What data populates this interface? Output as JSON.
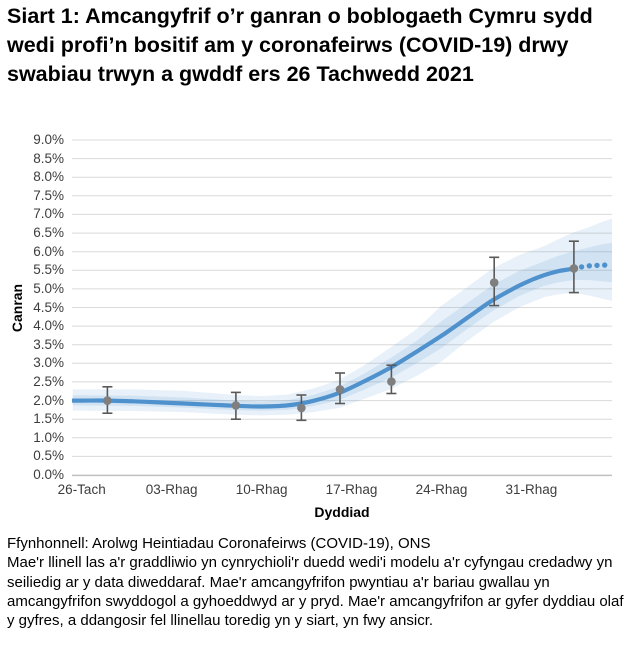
{
  "title": "Siart 1: Amcangyfrif o’r ganran o boblogaeth Cymru sydd wedi profi’n bositif am y coronafeirws (COVID-19) drwy swabiau trwyn a gwddf ers 26 Tachwedd 2021",
  "footer": {
    "source": "Ffynhonnell: Arolwg Heintiadau Coronafeirws (COVID-19), ONS",
    "note": "Mae'r llinell las a'r graddliwio yn cynrychioli'r duedd wedi'i modelu a'r cyfyngau credadwy yn seiliedig ar y data diweddaraf. Mae'r amcangyfrifon pwyntiau a'r bariau gwallau yn amcangyfrifon swyddogol a gyhoeddwyd ar y pryd. Mae'r amcangyfrifon ar gyfer dyddiau olaf y gyfres, a ddangosir fel llinellau toredig yn y siart, yn fwy ansicr."
  },
  "colors": {
    "trend": "#4e91cd",
    "band_outer": "rgba(91,155,213,0.14)",
    "band_inner": "rgba(91,155,213,0.16)",
    "marker": "#7f7f7f",
    "error_bar": "#595959",
    "grid": "#d9d9d9",
    "axis": "#bfbfbf",
    "tick_text": "#3d3d3d"
  },
  "chart_data": {
    "type": "line",
    "title": "Siart 1: Amcangyfrif o’r ganran o boblogaeth Cymru sydd wedi profi’n bositif am y coronafeirws (COVID-19) drwy swabiau trwyn a gwddf ers 26 Tachwedd 2021",
    "xlabel": "Dyddiad",
    "ylabel": "Canran",
    "ylim": [
      0,
      9
    ],
    "grid": "horizontal",
    "legend": "none",
    "x_axis_unit": "days since 26 Tachwedd 2021",
    "y_ticks": [
      {
        "v": 9.0,
        "label": "9.0%"
      },
      {
        "v": 8.5,
        "label": "8.5%"
      },
      {
        "v": 8.0,
        "label": "8.0%"
      },
      {
        "v": 7.5,
        "label": "7.5%"
      },
      {
        "v": 7.0,
        "label": "7.0%"
      },
      {
        "v": 6.5,
        "label": "6.5%"
      },
      {
        "v": 6.0,
        "label": "6.0%"
      },
      {
        "v": 5.5,
        "label": "5.5%"
      },
      {
        "v": 5.0,
        "label": "5.0%"
      },
      {
        "v": 4.5,
        "label": "4.5%"
      },
      {
        "v": 4.0,
        "label": "4.0%"
      },
      {
        "v": 3.5,
        "label": "3.5%"
      },
      {
        "v": 3.0,
        "label": "3.0%"
      },
      {
        "v": 2.5,
        "label": "2.5%"
      },
      {
        "v": 2.0,
        "label": "2.0%"
      },
      {
        "v": 1.5,
        "label": "1.5%"
      },
      {
        "v": 1.0,
        "label": "1.0%"
      },
      {
        "v": 0.5,
        "label": "0.5%"
      },
      {
        "v": 0.0,
        "label": "0.0%"
      }
    ],
    "x_ticks": [
      {
        "day": 0,
        "label": "26-Tach"
      },
      {
        "day": 7,
        "label": "03-Rhag"
      },
      {
        "day": 14,
        "label": "10-Rhag"
      },
      {
        "day": 21,
        "label": "17-Rhag"
      },
      {
        "day": 28,
        "label": "24-Rhag"
      },
      {
        "day": 35,
        "label": "31-Rhag"
      }
    ],
    "series": [
      {
        "name": "modelled-trend-solid",
        "type": "smooth-line",
        "points": [
          [
            -0.7,
            2.0
          ],
          [
            0,
            2.0
          ],
          [
            2,
            2.0
          ],
          [
            4,
            1.98
          ],
          [
            6,
            1.95
          ],
          [
            8,
            1.92
          ],
          [
            10,
            1.89
          ],
          [
            12,
            1.86
          ],
          [
            14,
            1.84
          ],
          [
            16,
            1.87
          ],
          [
            18,
            1.99
          ],
          [
            20,
            2.2
          ],
          [
            22,
            2.52
          ],
          [
            24,
            2.88
          ],
          [
            26,
            3.3
          ],
          [
            28,
            3.74
          ],
          [
            30,
            4.22
          ],
          [
            32,
            4.7
          ],
          [
            34,
            5.08
          ],
          [
            35,
            5.24
          ],
          [
            36,
            5.37
          ],
          [
            37,
            5.47
          ],
          [
            38,
            5.53
          ],
          [
            38.3,
            5.55
          ]
        ]
      },
      {
        "name": "modelled-trend-uncertain-dotted",
        "type": "dots",
        "points": [
          [
            38.9,
            5.59
          ],
          [
            39.5,
            5.62
          ],
          [
            40.1,
            5.63
          ],
          [
            40.7,
            5.64
          ]
        ]
      },
      {
        "name": "credible-interval-band",
        "type": "band",
        "points": [
          [
            -0.7,
            1.73,
            2.3
          ],
          [
            4,
            1.72,
            2.3
          ],
          [
            8,
            1.69,
            2.26
          ],
          [
            12,
            1.62,
            2.15
          ],
          [
            14,
            1.6,
            2.12
          ],
          [
            16,
            1.62,
            2.16
          ],
          [
            18,
            1.69,
            2.32
          ],
          [
            20,
            1.8,
            2.55
          ],
          [
            22,
            2.05,
            2.95
          ],
          [
            24,
            2.3,
            3.42
          ],
          [
            26,
            2.65,
            3.9
          ],
          [
            28,
            3.05,
            4.55
          ],
          [
            30,
            3.6,
            5.05
          ],
          [
            32,
            4.1,
            5.55
          ],
          [
            34,
            4.5,
            5.9
          ],
          [
            36,
            4.78,
            6.15
          ],
          [
            37,
            4.85,
            6.32
          ],
          [
            38.3,
            4.9,
            6.52
          ],
          [
            39.5,
            4.82,
            6.66
          ],
          [
            40.5,
            4.74,
            6.8
          ],
          [
            41.5,
            4.66,
            6.92
          ]
        ]
      },
      {
        "name": "official-point-estimates",
        "type": "scatter-error-bars",
        "points": [
          {
            "day": 2.0,
            "value": 2.0,
            "lo": 1.66,
            "hi": 2.37
          },
          {
            "day": 12.0,
            "value": 1.87,
            "lo": 1.5,
            "hi": 2.22
          },
          {
            "day": 17.1,
            "value": 1.8,
            "lo": 1.47,
            "hi": 2.15
          },
          {
            "day": 20.1,
            "value": 2.3,
            "lo": 1.92,
            "hi": 2.74
          },
          {
            "day": 24.1,
            "value": 2.51,
            "lo": 2.19,
            "hi": 2.95
          },
          {
            "day": 32.1,
            "value": 5.17,
            "lo": 4.55,
            "hi": 5.85
          },
          {
            "day": 38.3,
            "value": 5.55,
            "lo": 4.9,
            "hi": 6.28
          }
        ]
      }
    ]
  }
}
